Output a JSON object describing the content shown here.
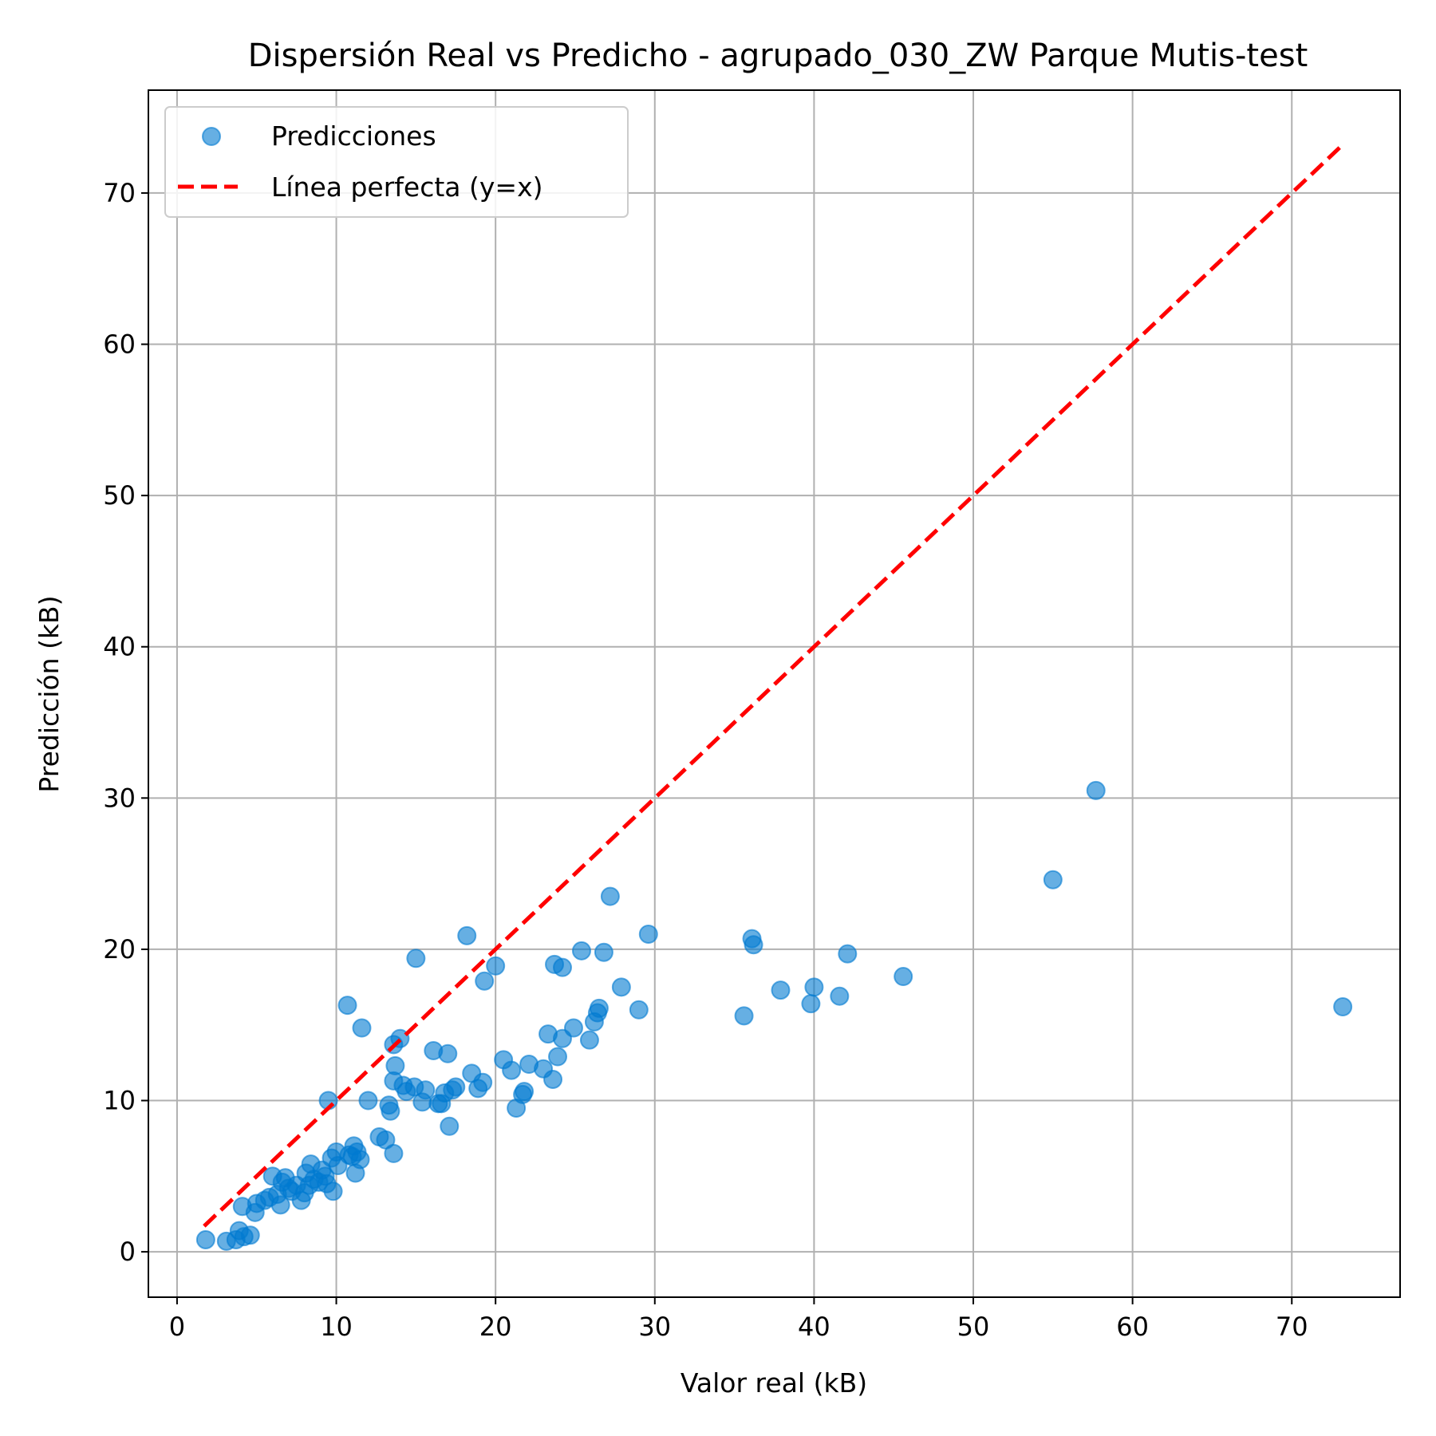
{
  "chart_data": {
    "type": "scatter",
    "title": "Dispersión Real vs Predicho - agrupado_030_ZW Parque Mutis-test",
    "xlabel": "Valor real (kB)",
    "ylabel": "Predicción (kB)",
    "xlim": [
      -1.8,
      76.8
    ],
    "ylim": [
      -3,
      76.8
    ],
    "xticks": [
      0,
      10,
      20,
      30,
      40,
      50,
      60,
      70
    ],
    "yticks": [
      0,
      10,
      20,
      30,
      40,
      50,
      60,
      70
    ],
    "grid": true,
    "legend": {
      "placement": "top-left",
      "entries": [
        {
          "label": "Predicciones",
          "kind": "marker",
          "color": "#0079d0"
        },
        {
          "label": "Línea perfecta (y=x)",
          "kind": "dashed-line",
          "color": "#ff0000"
        }
      ]
    },
    "series": [
      {
        "name": "Predicciones",
        "kind": "scatter",
        "color": "#0079d0",
        "points": [
          [
            1.8,
            0.8
          ],
          [
            3.1,
            0.7
          ],
          [
            3.7,
            0.8
          ],
          [
            4.2,
            1.0
          ],
          [
            4.6,
            1.1
          ],
          [
            3.9,
            1.4
          ],
          [
            4.1,
            3.0
          ],
          [
            4.9,
            2.6
          ],
          [
            5.0,
            3.2
          ],
          [
            5.5,
            3.4
          ],
          [
            5.8,
            3.6
          ],
          [
            6.0,
            5.0
          ],
          [
            6.3,
            3.8
          ],
          [
            6.5,
            3.1
          ],
          [
            6.6,
            4.6
          ],
          [
            6.8,
            4.9
          ],
          [
            7.0,
            4.2
          ],
          [
            7.2,
            4.0
          ],
          [
            7.5,
            4.4
          ],
          [
            7.8,
            3.4
          ],
          [
            8.0,
            3.9
          ],
          [
            8.1,
            5.2
          ],
          [
            8.3,
            4.4
          ],
          [
            8.4,
            5.8
          ],
          [
            8.6,
            4.8
          ],
          [
            8.9,
            4.6
          ],
          [
            9.1,
            5.4
          ],
          [
            9.3,
            5.0
          ],
          [
            9.4,
            4.5
          ],
          [
            9.5,
            10.0
          ],
          [
            9.7,
            6.2
          ],
          [
            9.8,
            4.0
          ],
          [
            10.0,
            6.6
          ],
          [
            10.1,
            5.7
          ],
          [
            10.7,
            16.3
          ],
          [
            10.8,
            6.4
          ],
          [
            11.0,
            6.3
          ],
          [
            11.1,
            7.0
          ],
          [
            11.2,
            5.2
          ],
          [
            11.3,
            6.6
          ],
          [
            11.5,
            6.1
          ],
          [
            11.6,
            14.8
          ],
          [
            12.0,
            10.0
          ],
          [
            12.7,
            7.6
          ],
          [
            13.1,
            7.4
          ],
          [
            13.3,
            9.7
          ],
          [
            13.4,
            9.3
          ],
          [
            13.6,
            6.5
          ],
          [
            13.6,
            13.7
          ],
          [
            13.6,
            11.3
          ],
          [
            13.7,
            12.3
          ],
          [
            14.0,
            14.1
          ],
          [
            14.2,
            11.0
          ],
          [
            14.4,
            10.6
          ],
          [
            14.9,
            10.9
          ],
          [
            15.0,
            19.4
          ],
          [
            15.4,
            9.9
          ],
          [
            15.6,
            10.7
          ],
          [
            16.1,
            13.3
          ],
          [
            16.4,
            9.8
          ],
          [
            16.6,
            9.8
          ],
          [
            16.8,
            10.5
          ],
          [
            17.0,
            13.1
          ],
          [
            17.1,
            8.3
          ],
          [
            17.3,
            10.7
          ],
          [
            17.5,
            10.9
          ],
          [
            18.2,
            20.9
          ],
          [
            18.5,
            11.8
          ],
          [
            18.9,
            10.8
          ],
          [
            19.2,
            11.2
          ],
          [
            19.3,
            17.9
          ],
          [
            20.0,
            18.9
          ],
          [
            20.5,
            12.7
          ],
          [
            21.0,
            12.0
          ],
          [
            21.3,
            9.5
          ],
          [
            21.7,
            10.4
          ],
          [
            21.8,
            10.6
          ],
          [
            22.1,
            12.4
          ],
          [
            23.0,
            12.1
          ],
          [
            23.3,
            14.4
          ],
          [
            23.6,
            11.4
          ],
          [
            23.7,
            19.0
          ],
          [
            23.9,
            12.9
          ],
          [
            24.2,
            18.8
          ],
          [
            24.2,
            14.1
          ],
          [
            24.9,
            14.8
          ],
          [
            25.4,
            19.9
          ],
          [
            25.9,
            14.0
          ],
          [
            26.2,
            15.2
          ],
          [
            26.4,
            15.8
          ],
          [
            26.5,
            16.1
          ],
          [
            26.8,
            19.8
          ],
          [
            27.2,
            23.5
          ],
          [
            27.9,
            17.5
          ],
          [
            29.0,
            16.0
          ],
          [
            29.6,
            21.0
          ],
          [
            35.6,
            15.6
          ],
          [
            36.1,
            20.7
          ],
          [
            36.2,
            20.3
          ],
          [
            37.9,
            17.3
          ],
          [
            39.8,
            16.4
          ],
          [
            40.0,
            17.5
          ],
          [
            41.6,
            16.9
          ],
          [
            42.1,
            19.7
          ],
          [
            45.6,
            18.2
          ],
          [
            55.0,
            24.6
          ],
          [
            57.7,
            30.5
          ],
          [
            73.2,
            16.2
          ]
        ]
      },
      {
        "name": "Línea perfecta (y=x)",
        "kind": "dashed-line",
        "color": "#ff0000",
        "points": [
          [
            1.7,
            1.7
          ],
          [
            73.2,
            73.2
          ]
        ]
      }
    ]
  }
}
